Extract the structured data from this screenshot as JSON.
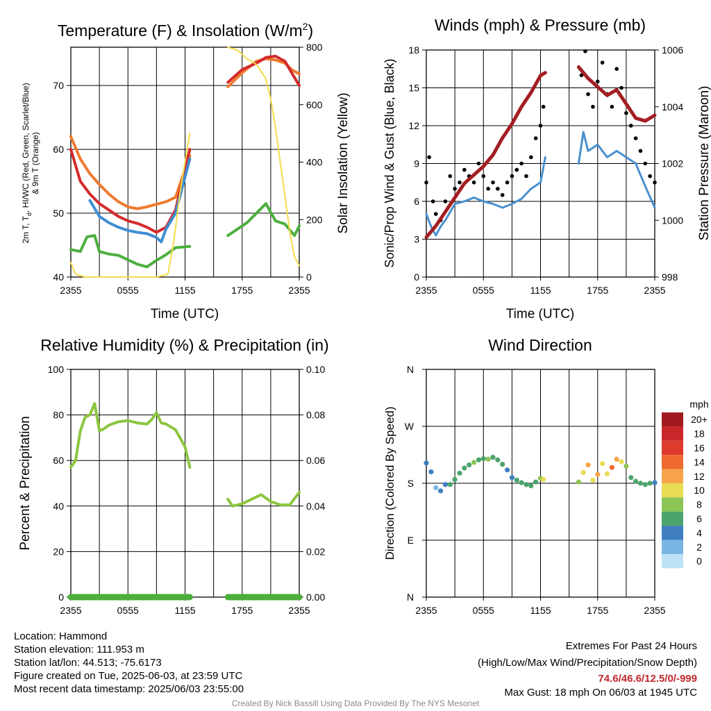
{
  "panels": {
    "temperature": {
      "title_main": "Temperature (F) & Insolation (W/m",
      "title_sup": "2",
      "title_end": ")",
      "ylabel_left": "2m T, T",
      "ylabel_left_sub": "d",
      "ylabel_left_rest": ", HI/WC (Red, Green, Scarlet/Blue)",
      "ylabel_left_line2": "& 9m T (Orange)",
      "ylabel_right": "Solar Insolation (Yellow)",
      "xlabel": "Time (UTC)"
    },
    "winds": {
      "title": "Winds (mph) & Pressure (mb)",
      "ylabel_left": "Sonic/Prop Wind & Gust (Blue, Black)",
      "ylabel_right": "Station Pressure (Maroon)",
      "xlabel": "Time (UTC)"
    },
    "humidity": {
      "title": "Relative Humidity (%) & Precipitation (in)",
      "ylabel_left": "Percent & Precipitation"
    },
    "direction": {
      "title": "Wind Direction",
      "ylabel_left": "Direction (Colored By Speed)",
      "legend_title": "mph",
      "legend_labels": [
        "20+",
        "18",
        "16",
        "14",
        "12",
        "10",
        "8",
        "6",
        "4",
        "2",
        "0"
      ],
      "legend_colors": [
        "#a11a1e",
        "#c8262a",
        "#de3a2e",
        "#ef6a2e",
        "#f7a44a",
        "#e8dc55",
        "#8cc456",
        "#4ba46c",
        "#3f7fbf",
        "#79b6e4",
        "#bfe3f6"
      ]
    }
  },
  "info": {
    "location": "Location: Hammond",
    "elevation": "Station elevation: 111.953 m",
    "latlon": "Station lat/lon: 44.513; -75.6173",
    "created": "Figure created on Tue, 2025-06-03, at 23:59 UTC",
    "recent": "Most recent data timestamp: 2025/06/03 23:55:00"
  },
  "extremes": {
    "title": "Extremes For Past 24 Hours",
    "subtitle": "(High/Low/Max Wind/Precipitation/Snow Depth)",
    "values": "74.6/46.6/12.5/0/-999",
    "gust": "Max Gust: 18 mph On 06/03 at 1945 UTC"
  },
  "credit": "Created By Nick Bassill Using Data Provided By The NYS Mesonet",
  "chart_data": [
    {
      "type": "line",
      "title": "Temperature (F) & Insolation (W/m2)",
      "xlabel": "Time (UTC)",
      "x_ticks": [
        "2355",
        "0555",
        "1155",
        "1755",
        "2355"
      ],
      "x_hours": [
        0,
        6,
        12,
        18,
        24
      ],
      "ylim": [
        40,
        76
      ],
      "y_ticks": [
        40,
        50,
        60,
        70
      ],
      "y2lim": [
        0,
        800
      ],
      "y2_ticks": [
        0,
        200,
        400,
        600,
        800
      ],
      "gap_hours": [
        12.6,
        16.5
      ],
      "series": [
        {
          "color": "#ef7a2e",
          "axis": "left",
          "x": [
            0,
            1,
            2,
            3,
            4,
            5,
            6,
            7,
            8,
            9,
            10,
            11,
            12.5,
            16.5,
            18,
            19.5,
            20.5,
            21.5,
            22.5,
            23.2,
            24
          ],
          "y": [
            62,
            58.5,
            56.2,
            54.5,
            53,
            51.8,
            51,
            50.7,
            51,
            51.4,
            51.8,
            52.5,
            59,
            69.8,
            72,
            73.8,
            74.2,
            74,
            73.5,
            72.5,
            71.8
          ]
        },
        {
          "color": "#d42a2c",
          "axis": "left",
          "x": [
            0,
            1,
            2,
            3,
            4,
            5,
            6,
            7,
            8,
            9,
            10,
            11,
            12.5,
            16.5,
            18,
            19.5,
            20.5,
            21.5,
            22.5,
            23.2,
            24
          ],
          "y": [
            60,
            55,
            53,
            51.5,
            50.5,
            49.5,
            48.8,
            48.4,
            47.8,
            47,
            47.8,
            50.5,
            60,
            70.5,
            72.5,
            73.5,
            74.4,
            74.6,
            73.8,
            72,
            70
          ]
        },
        {
          "color": "#3f8fd2",
          "axis": "left",
          "x": [
            2,
            3,
            4,
            5,
            6,
            7,
            8,
            9,
            9.5,
            10,
            11,
            12.5
          ],
          "y": [
            52,
            49.5,
            48.5,
            47.8,
            47.3,
            47,
            46.8,
            46.2,
            45.5,
            47.5,
            50,
            58.5
          ]
        },
        {
          "color": "#4caf3e",
          "axis": "left",
          "x": [
            0,
            1,
            1.7,
            2.5,
            3,
            4,
            5,
            6,
            7,
            8,
            9,
            10,
            11,
            12.5,
            16.5,
            17.5,
            18.5,
            19.5,
            20.5,
            21.5,
            22.5,
            23.5,
            24
          ],
          "y": [
            44.3,
            44,
            46.3,
            46.5,
            44,
            43.6,
            43.4,
            42.7,
            42,
            41.6,
            42.6,
            43.5,
            44.6,
            44.8,
            46.5,
            47.5,
            48.5,
            50,
            51.5,
            48.8,
            48.3,
            46.5,
            48
          ]
        },
        {
          "color": "#f5dc4a",
          "axis": "right",
          "x": [
            0,
            0.5,
            1.5,
            3,
            5,
            7,
            9,
            10.2,
            10.8,
            11.5,
            12.5,
            16.5,
            17.5,
            18.5,
            19.5,
            20.5,
            21,
            21.5,
            22,
            22.5,
            23,
            23.5,
            24
          ],
          "y": [
            50,
            10,
            0,
            0,
            0,
            0,
            0,
            10,
            120,
            300,
            500,
            800,
            790,
            760,
            740,
            690,
            620,
            520,
            400,
            280,
            160,
            70,
            40
          ]
        }
      ]
    },
    {
      "type": "line",
      "title": "Winds (mph) & Pressure (mb)",
      "xlabel": "Time (UTC)",
      "x_ticks": [
        "2355",
        "0555",
        "1155",
        "1755",
        "2355"
      ],
      "ylim": [
        0,
        18
      ],
      "y_ticks": [
        0,
        3,
        6,
        9,
        12,
        15,
        18
      ],
      "y2lim": [
        998,
        1006
      ],
      "y2_ticks": [
        998,
        1000,
        1002,
        1004,
        1006
      ],
      "series": [
        {
          "color": "#4a8fcf",
          "axis": "left",
          "marker": "line",
          "x": [
            0,
            0.5,
            1,
            1.5,
            2,
            3,
            4,
            5,
            6,
            7,
            8,
            9,
            10,
            11,
            12,
            12.5,
            16,
            16.5,
            17,
            18,
            19,
            20,
            21,
            22,
            23,
            24
          ],
          "y": [
            5,
            4,
            3.3,
            4,
            4.5,
            5.8,
            6,
            6.3,
            6,
            5.8,
            5.5,
            5.8,
            6.2,
            7,
            7.5,
            9.5,
            9,
            11.5,
            10,
            10.5,
            9.5,
            10,
            9.5,
            9,
            7.2,
            5.5
          ]
        },
        {
          "color": "#000000",
          "axis": "left",
          "marker": "dot",
          "x": [
            0,
            0.3,
            0.7,
            1,
            1.5,
            2,
            2.5,
            3,
            3.5,
            4,
            4.5,
            5,
            5.5,
            6,
            6.5,
            7,
            7.5,
            8,
            8.5,
            9,
            9.5,
            10,
            10.5,
            11,
            11.5,
            12,
            12.3,
            16.3,
            16.7,
            17,
            17.5,
            18,
            18.5,
            19,
            19.5,
            20,
            20.5,
            21,
            21.5,
            22,
            22.5,
            23,
            23.5,
            24
          ],
          "y": [
            7.5,
            9.5,
            6,
            5,
            4.5,
            6,
            8,
            7,
            7.5,
            8.5,
            8,
            7.5,
            9,
            8,
            7,
            7.5,
            7,
            6.5,
            7.5,
            8,
            8.5,
            9,
            8,
            9.5,
            11,
            12,
            13.5,
            16,
            17.9,
            14.5,
            13.5,
            15.5,
            17,
            14.5,
            13.5,
            16.5,
            15,
            13,
            12,
            11,
            10,
            9,
            8,
            7.5
          ]
        },
        {
          "color": "#a31e22",
          "axis": "right",
          "marker": "line",
          "x": [
            0,
            1,
            2,
            3,
            4,
            5,
            6,
            7,
            8,
            9,
            10,
            11,
            12,
            12.5,
            16,
            17,
            18,
            19,
            20,
            21,
            22,
            23,
            24
          ],
          "y": [
            999.4,
            999.8,
            1000.3,
            1000.8,
            1001.3,
            1001.6,
            1001.9,
            1002.3,
            1002.9,
            1003.4,
            1004.0,
            1004.5,
            1005.1,
            1005.2,
            1005.4,
            1005.0,
            1004.7,
            1004.4,
            1004.6,
            1004.1,
            1003.6,
            1003.5,
            1003.7
          ]
        }
      ]
    },
    {
      "type": "line",
      "title": "Relative Humidity (%) & Precipitation (in)",
      "x_ticks": [
        "2355",
        "0555",
        "1155",
        "1755",
        "2355"
      ],
      "ylim": [
        0,
        100
      ],
      "y_ticks": [
        0,
        20,
        40,
        60,
        80,
        100
      ],
      "y2lim": [
        0,
        0.1
      ],
      "y2_ticks": [
        "0.00",
        "0.02",
        "0.04",
        "0.06",
        "0.08",
        "0.10"
      ],
      "series": [
        {
          "color": "#8cc63f",
          "axis": "left",
          "x": [
            0,
            0.5,
            1,
            1.5,
            2,
            2.5,
            3,
            3.5,
            4,
            5,
            6,
            7,
            8,
            8.5,
            9,
            9.5,
            10,
            11,
            12,
            12.5,
            16.5,
            17,
            18,
            19,
            20,
            21,
            22,
            23,
            24
          ],
          "y": [
            57,
            60,
            73,
            79,
            80,
            85,
            73,
            74,
            75.5,
            77,
            77.5,
            76.5,
            76,
            78,
            81,
            76.5,
            76,
            73.5,
            66,
            57,
            43,
            40,
            41,
            43,
            45,
            42,
            40.5,
            40.5,
            46
          ]
        },
        {
          "color": "#4cae3b",
          "axis": "left",
          "x": [
            0,
            12.5,
            16.5,
            24
          ],
          "y": [
            0,
            0,
            0,
            0
          ]
        }
      ]
    },
    {
      "type": "scatter",
      "title": "Wind Direction",
      "y_ticks": [
        "N",
        "E",
        "S",
        "W",
        "N"
      ],
      "x_ticks": [
        "2355",
        "0555",
        "1155",
        "1755",
        "2355"
      ],
      "ylim": [
        0,
        360
      ],
      "x": [
        0,
        0.5,
        1,
        1.5,
        2,
        2.5,
        3,
        3.5,
        4,
        4.5,
        5,
        5.5,
        6,
        6.5,
        7,
        7.5,
        8,
        8.5,
        9,
        9.5,
        10,
        10.5,
        11,
        11.5,
        12,
        12.3,
        16,
        16.5,
        17,
        17.5,
        18,
        18.5,
        19,
        19.5,
        20,
        20.5,
        21,
        21.5,
        22,
        22.5,
        23,
        23.5,
        24
      ],
      "y": [
        212,
        198,
        173,
        168,
        178,
        178,
        186,
        196,
        204,
        209,
        213,
        217,
        219,
        218,
        221,
        217,
        210,
        201,
        189,
        185,
        181,
        178,
        176,
        182,
        188,
        186,
        182,
        197,
        209,
        185,
        194,
        211,
        195,
        205,
        218,
        214,
        207,
        189,
        183,
        180,
        178,
        180,
        181
      ],
      "speed_mph": [
        4,
        3,
        2,
        4,
        4,
        5,
        5,
        6,
        6,
        6,
        7,
        6,
        6,
        7,
        6,
        6,
        5,
        4,
        4,
        5,
        5,
        5,
        5,
        6,
        7,
        9,
        8,
        9,
        11,
        10,
        12,
        9,
        10,
        13,
        11,
        10,
        8,
        6,
        6,
        5,
        5,
        5,
        4
      ]
    }
  ]
}
